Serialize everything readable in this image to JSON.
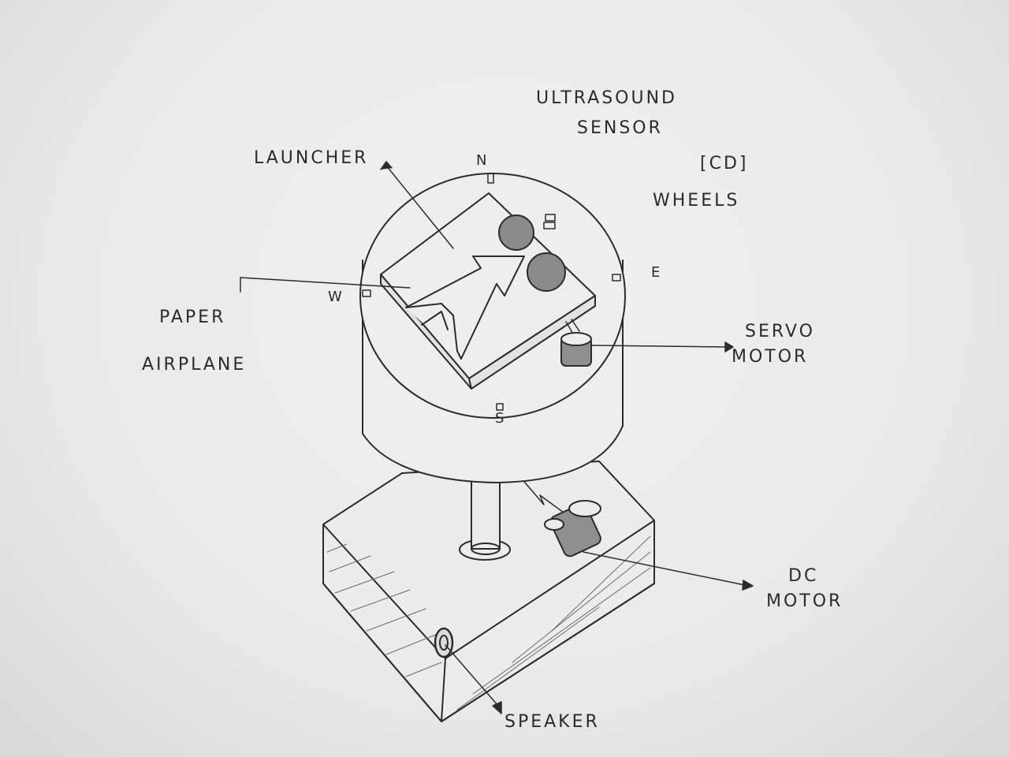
{
  "labels": {
    "ultrasound_1": "Ultrasound",
    "ultrasound_2": "Sensor",
    "cd": "[CD]",
    "wheels": "Wheels",
    "launcher": "Launcher",
    "paper_1": "Paper",
    "paper_2": "Airplane",
    "servo_1": "Servo",
    "servo_2": "Motor",
    "dc_1": "DC",
    "dc_2": "Motor",
    "speaker": "Speaker"
  },
  "compass": {
    "n": "N",
    "e": "E",
    "s": "S",
    "w": "W"
  },
  "colors": {
    "ink": "#2b2b2b",
    "paper": "#eeeeec",
    "shade": "#8f8f8f"
  }
}
